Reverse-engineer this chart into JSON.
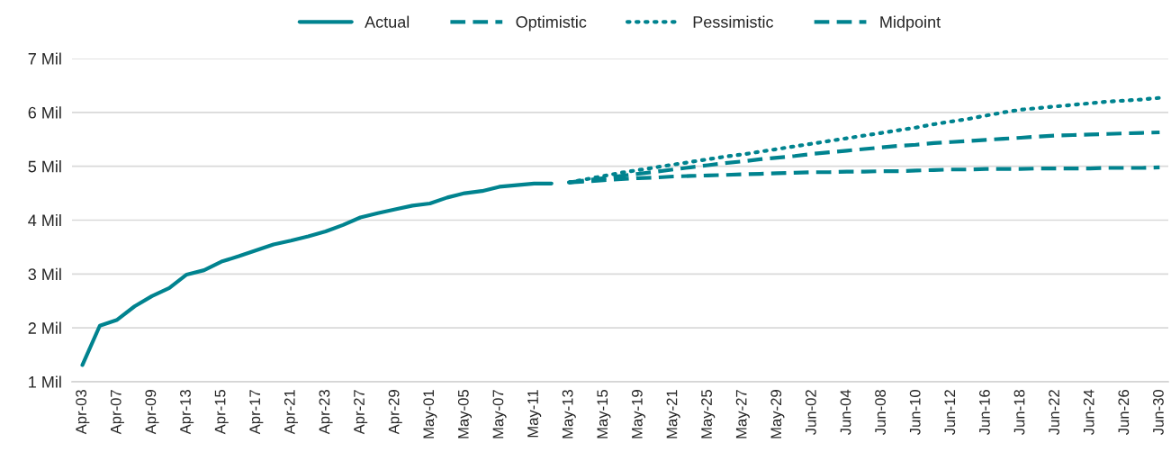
{
  "chart_data": {
    "type": "line",
    "categories": [
      "Apr-03",
      null,
      "Apr-07",
      null,
      "Apr-09",
      null,
      "Apr-13",
      null,
      "Apr-15",
      null,
      "Apr-17",
      null,
      "Apr-21",
      null,
      "Apr-23",
      null,
      "Apr-27",
      null,
      "Apr-29",
      null,
      "May-01",
      null,
      "May-05",
      null,
      "May-07",
      null,
      "May-11",
      null,
      "May-13",
      null,
      "May-15",
      null,
      "May-19",
      null,
      "May-21",
      null,
      "May-25",
      null,
      "May-27",
      null,
      "May-29",
      null,
      "Jun-02",
      null,
      "Jun-04",
      null,
      "Jun-08",
      null,
      "Jun-10",
      null,
      "Jun-12",
      null,
      "Jun-16",
      null,
      "Jun-18",
      null,
      "Jun-22",
      null,
      "Jun-24",
      null,
      "Jun-26",
      null,
      "Jun-30"
    ],
    "series": [
      {
        "name": "Actual",
        "color": "#00838f",
        "line_style": "solid",
        "values": [
          1.31,
          2.04,
          2.15,
          2.4,
          2.59,
          2.74,
          2.99,
          3.07,
          3.23,
          3.33,
          3.44,
          3.55,
          3.62,
          3.7,
          3.79,
          3.91,
          4.05,
          4.13,
          4.2,
          4.27,
          4.31,
          4.42,
          4.5,
          4.54,
          4.62,
          4.65,
          4.68,
          4.68,
          null,
          null,
          null,
          null,
          null,
          null,
          null,
          null,
          null,
          null,
          null,
          null,
          null,
          null,
          null,
          null,
          null,
          null,
          null,
          null,
          null,
          null,
          null,
          null,
          null,
          null,
          null,
          null,
          null,
          null,
          null,
          null,
          null,
          null,
          null
        ]
      },
      {
        "name": "Optimistic",
        "color": "#00838f",
        "line_style": "dashed",
        "values": [
          null,
          null,
          null,
          null,
          null,
          null,
          null,
          null,
          null,
          null,
          null,
          null,
          null,
          null,
          null,
          null,
          null,
          null,
          null,
          null,
          null,
          null,
          null,
          null,
          null,
          null,
          null,
          null,
          4.7,
          4.72,
          4.74,
          4.76,
          4.78,
          4.79,
          4.81,
          4.82,
          4.83,
          4.84,
          4.85,
          4.86,
          4.87,
          4.88,
          4.89,
          4.89,
          4.9,
          4.9,
          4.91,
          4.91,
          4.92,
          4.93,
          4.94,
          4.94,
          4.95,
          4.95,
          4.95,
          4.96,
          4.96,
          4.96,
          4.96,
          4.97,
          4.97,
          4.97,
          4.98
        ]
      },
      {
        "name": "Pessimistic",
        "color": "#00838f",
        "line_style": "dotted",
        "values": [
          null,
          null,
          null,
          null,
          null,
          null,
          null,
          null,
          null,
          null,
          null,
          null,
          null,
          null,
          null,
          null,
          null,
          null,
          null,
          null,
          null,
          null,
          null,
          null,
          null,
          null,
          null,
          null,
          4.7,
          4.76,
          4.82,
          4.88,
          4.93,
          4.98,
          5.03,
          5.08,
          5.13,
          5.18,
          5.22,
          5.27,
          5.32,
          5.37,
          5.42,
          5.47,
          5.52,
          5.57,
          5.62,
          5.67,
          5.72,
          5.78,
          5.83,
          5.88,
          5.94,
          6.0,
          6.05,
          6.08,
          6.11,
          6.14,
          6.17,
          6.2,
          6.22,
          6.24,
          6.27
        ]
      },
      {
        "name": "Midpoint",
        "color": "#00838f",
        "line_style": "dashed",
        "values": [
          null,
          null,
          null,
          null,
          null,
          null,
          null,
          null,
          null,
          null,
          null,
          null,
          null,
          null,
          null,
          null,
          null,
          null,
          null,
          null,
          null,
          null,
          null,
          null,
          null,
          null,
          null,
          null,
          4.7,
          4.74,
          4.78,
          4.82,
          4.86,
          4.9,
          4.94,
          4.98,
          5.02,
          5.06,
          5.09,
          5.13,
          5.16,
          5.19,
          5.23,
          5.26,
          5.29,
          5.32,
          5.35,
          5.38,
          5.4,
          5.43,
          5.45,
          5.47,
          5.49,
          5.51,
          5.53,
          5.55,
          5.57,
          5.58,
          5.59,
          5.6,
          5.61,
          5.62,
          5.63
        ]
      }
    ],
    "ylim": [
      1,
      7
    ],
    "yticks": [
      {
        "value": 1,
        "label": "1 Mil"
      },
      {
        "value": 2,
        "label": "2 Mil"
      },
      {
        "value": 3,
        "label": "3 Mil"
      },
      {
        "value": 4,
        "label": "4 Mil"
      },
      {
        "value": 5,
        "label": "5 Mil"
      },
      {
        "value": 6,
        "label": "6 Mil"
      },
      {
        "value": 7,
        "label": "7 Mil"
      }
    ],
    "grid": "y",
    "legend": "top"
  }
}
